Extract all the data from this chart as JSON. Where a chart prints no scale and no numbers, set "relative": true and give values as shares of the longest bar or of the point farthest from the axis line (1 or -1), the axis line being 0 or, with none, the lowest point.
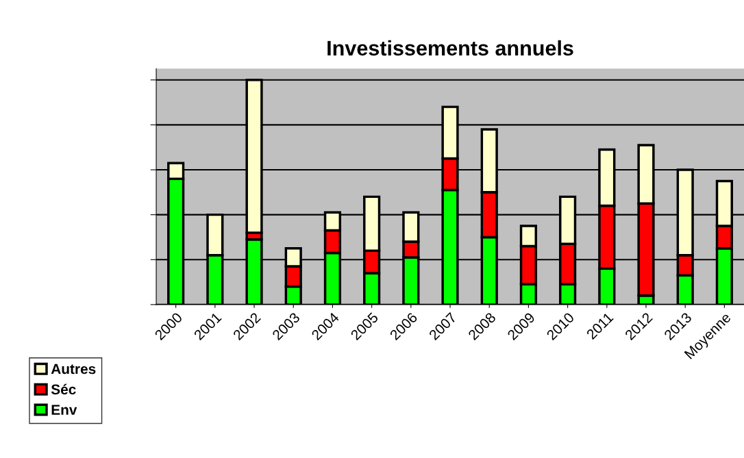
{
  "chart_data": {
    "type": "bar",
    "title": "Investissements annuels",
    "stacked": true,
    "relative": true,
    "grid": "y",
    "legend": "bottom left",
    "categories": [
      "2000",
      "2001",
      "2002",
      "2003",
      "2004",
      "2005",
      "2006",
      "2007",
      "2008",
      "2009",
      "2010",
      "2011",
      "2012",
      "2013",
      "Moyenne"
    ],
    "series": [
      {
        "name": "Env",
        "color": "#00ff00",
        "values": [
          0.56,
          0.22,
          0.29,
          0.08,
          0.23,
          0.14,
          0.21,
          0.51,
          0.3,
          0.09,
          0.09,
          0.16,
          0.04,
          0.13,
          0.25
        ]
      },
      {
        "name": "Séc",
        "color": "#ff0000",
        "values": [
          null,
          null,
          0.03,
          0.09,
          0.1,
          0.1,
          0.07,
          0.14,
          0.2,
          0.17,
          0.18,
          0.28,
          0.41,
          0.09,
          0.1
        ]
      },
      {
        "name": "Autres",
        "color": "#ffffcc",
        "values": [
          0.07,
          0.18,
          0.68,
          0.08,
          0.08,
          0.24,
          0.13,
          0.23,
          0.28,
          0.09,
          0.21,
          0.25,
          0.26,
          0.38,
          0.2
        ]
      }
    ]
  }
}
